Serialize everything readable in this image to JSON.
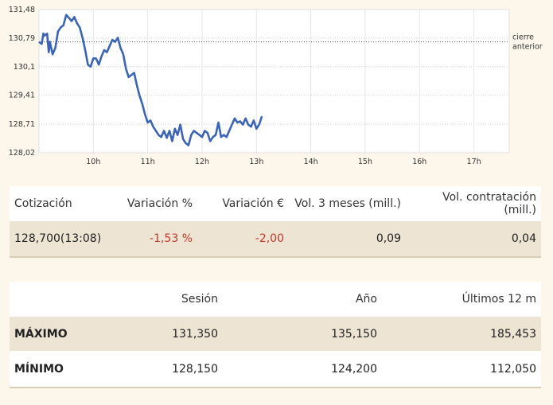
{
  "chart_data": {
    "type": "line",
    "title": "",
    "xlabel": "",
    "ylabel": "",
    "ylim": [
      128.02,
      131.48
    ],
    "y_ticks": [
      "131,48",
      "130,79",
      "130,1",
      "129,41",
      "128,71",
      "128,02"
    ],
    "y_tick_values": [
      131.48,
      130.79,
      130.1,
      129.41,
      128.71,
      128.02
    ],
    "x_ticks": [
      "10h",
      "11h",
      "12h",
      "13h",
      "14h",
      "15h",
      "16h",
      "17h"
    ],
    "x_tick_values": [
      10,
      11,
      12,
      13,
      14,
      15,
      16,
      17
    ],
    "xlim": [
      9,
      17.65
    ],
    "reference_line": {
      "label_line1": "cierre",
      "label_line2": "anterior",
      "value": 130.7
    },
    "grid": true,
    "line_color": "#3a64b5",
    "series": [
      {
        "x": [
          9,
          9.05,
          9.08,
          9.1,
          9.15,
          9.18,
          9.2,
          9.25,
          9.3,
          9.35,
          9.4,
          9.45,
          9.5,
          9.55,
          9.6,
          9.65,
          9.7,
          9.75,
          9.8,
          9.85,
          9.9,
          9.95,
          10.0,
          10.05,
          10.1,
          10.15,
          10.2,
          10.25,
          10.3,
          10.35,
          10.4,
          10.45,
          10.5,
          10.55,
          10.6,
          10.65,
          10.7,
          10.75,
          10.8,
          10.85,
          10.9,
          10.95,
          11.0,
          11.05,
          11.1,
          11.15,
          11.2,
          11.25,
          11.3,
          11.35,
          11.4,
          11.45,
          11.5,
          11.55,
          11.6,
          11.65,
          11.7,
          11.75,
          11.8,
          11.85,
          11.9,
          11.95,
          12.0,
          12.05,
          12.1,
          12.15,
          12.2,
          12.25,
          12.3,
          12.35,
          12.4,
          12.45,
          12.5,
          12.55,
          12.6,
          12.65,
          12.7,
          12.75,
          12.8,
          12.85,
          12.9,
          12.95,
          13.0,
          13.05,
          13.1
        ],
        "values": [
          130.7,
          130.65,
          130.9,
          130.85,
          130.9,
          130.45,
          130.7,
          130.4,
          130.55,
          130.95,
          131.05,
          131.1,
          131.35,
          131.28,
          131.2,
          131.3,
          131.15,
          131.05,
          130.8,
          130.5,
          130.15,
          130.1,
          130.3,
          130.3,
          130.15,
          130.35,
          130.5,
          130.45,
          130.6,
          130.75,
          130.7,
          130.8,
          130.55,
          130.4,
          130.05,
          129.85,
          129.9,
          129.95,
          129.65,
          129.4,
          129.2,
          128.95,
          128.75,
          128.8,
          128.65,
          128.55,
          128.45,
          128.4,
          128.55,
          128.38,
          128.55,
          128.3,
          128.6,
          128.45,
          128.7,
          128.35,
          128.25,
          128.2,
          128.45,
          128.55,
          128.5,
          128.45,
          128.4,
          128.55,
          128.5,
          128.3,
          128.4,
          128.45,
          128.75,
          128.4,
          128.45,
          128.4,
          128.55,
          128.7,
          128.85,
          128.75,
          128.78,
          128.7,
          128.85,
          128.7,
          128.65,
          128.8,
          128.6,
          128.7,
          128.9
        ]
      }
    ]
  },
  "quote_table": {
    "headers": [
      "Cotización",
      "Variación %",
      "Variación €",
      "Vol. 3 meses (mill.)",
      "Vol. contratación (mill.)"
    ],
    "row": [
      "128,700(13:08)",
      "-1,53 %",
      "-2,00",
      "0,09",
      "0,04"
    ]
  },
  "range_table": {
    "headers": [
      "",
      "Sesión",
      "Año",
      "Últimos 12 m"
    ],
    "rows": [
      {
        "label": "MÁXIMO",
        "values": [
          "131,350",
          "135,150",
          "185,453"
        ]
      },
      {
        "label": "MÍNIMO",
        "values": [
          "128,150",
          "124,200",
          "112,050"
        ]
      }
    ]
  },
  "colors": {
    "negative": "#c0392b",
    "row_shade": "#ede4d4",
    "background": "#fcf6eb"
  }
}
